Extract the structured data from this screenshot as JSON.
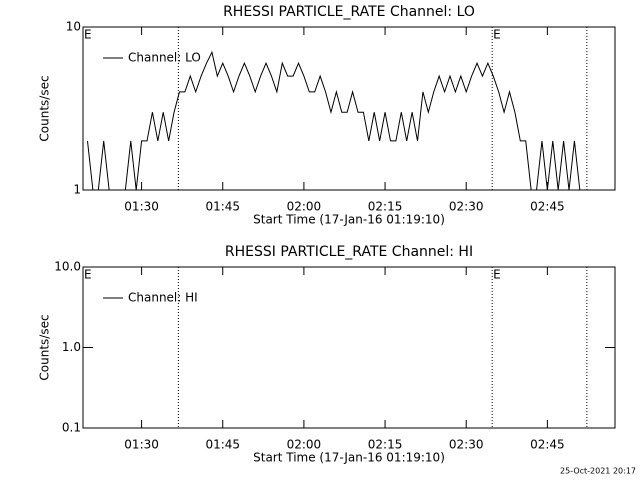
{
  "chart_data": [
    {
      "type": "line",
      "title": "RHESSI PARTICLE_RATE Channel: LO",
      "xlabel": "Start Time (17-Jan-16 01:19:10)",
      "ylabel": "Counts/sec",
      "log_y": true,
      "legend": "upper left",
      "xlim": [
        79.17,
        177.5
      ],
      "xticks": [
        {
          "value": 90,
          "label": "01:30"
        },
        {
          "value": 105,
          "label": "01:45"
        },
        {
          "value": 120,
          "label": "02:00"
        },
        {
          "value": 135,
          "label": "02:15"
        },
        {
          "value": 150,
          "label": "02:30"
        },
        {
          "value": 165,
          "label": "02:45"
        }
      ],
      "ylim": [
        1,
        10
      ],
      "yticks": [
        1,
        10
      ],
      "vlines": [
        96.8,
        154.8,
        172.3
      ],
      "annotations": [
        {
          "text": "E",
          "x": 79.17
        },
        {
          "text": "E",
          "x": 154.8
        }
      ],
      "x": [
        80,
        81,
        82,
        83,
        84,
        85,
        86,
        87,
        88,
        89,
        90,
        91,
        92,
        93,
        94,
        95,
        96,
        97,
        98,
        99,
        100,
        101,
        102,
        103,
        104,
        105,
        106,
        107,
        108,
        109,
        110,
        111,
        112,
        113,
        114,
        115,
        116,
        117,
        118,
        119,
        120,
        121,
        122,
        123,
        124,
        125,
        126,
        127,
        128,
        129,
        130,
        131,
        132,
        133,
        134,
        135,
        136,
        137,
        138,
        139,
        140,
        141,
        142,
        143,
        144,
        145,
        146,
        147,
        148,
        149,
        150,
        151,
        152,
        153,
        154,
        155,
        156,
        157,
        158,
        159,
        160,
        161,
        162,
        163,
        164,
        165,
        166,
        167,
        168,
        169,
        170,
        171
      ],
      "series": [
        {
          "name": "Channel: LO",
          "color": "#000000",
          "values": [
            2,
            1,
            1,
            2,
            1,
            1,
            1,
            1,
            2,
            1,
            2,
            2,
            3,
            2,
            3,
            2,
            3,
            4,
            4,
            5,
            4,
            5,
            6,
            7,
            5,
            6,
            5,
            4,
            5,
            6,
            5,
            4,
            5,
            6,
            5,
            4,
            6,
            5,
            5,
            6,
            5,
            4,
            4,
            5,
            4,
            3,
            4,
            3,
            3,
            4,
            3,
            3,
            2,
            3,
            2,
            3,
            2,
            2,
            3,
            2,
            3,
            2,
            4,
            3,
            4,
            5,
            4,
            5,
            4,
            5,
            4,
            5,
            6,
            5,
            6,
            5,
            4,
            3,
            4,
            3,
            2,
            2,
            1,
            1,
            2,
            1,
            2,
            1,
            2,
            1,
            2,
            1
          ]
        }
      ]
    },
    {
      "type": "line",
      "title": "RHESSI PARTICLE_RATE Channel: HI",
      "xlabel": "Start Time (17-Jan-16 01:19:10)",
      "ylabel": "Counts/sec",
      "log_y": true,
      "legend": "upper left",
      "xlim": [
        79.17,
        177.5
      ],
      "xticks": [
        {
          "value": 90,
          "label": "01:30"
        },
        {
          "value": 105,
          "label": "01:45"
        },
        {
          "value": 120,
          "label": "02:00"
        },
        {
          "value": 135,
          "label": "02:15"
        },
        {
          "value": 150,
          "label": "02:30"
        },
        {
          "value": 165,
          "label": "02:45"
        }
      ],
      "ylim": [
        0.1,
        10
      ],
      "yticks": [
        {
          "value": 0.1,
          "label": "0.1"
        },
        {
          "value": 1,
          "label": "1.0"
        },
        {
          "value": 10,
          "label": "10.0"
        }
      ],
      "vlines": [
        96.8,
        154.8,
        172.3
      ],
      "annotations": [
        {
          "text": "E",
          "x": 79.17
        },
        {
          "text": "E",
          "x": 154.8
        }
      ],
      "x": [],
      "series": [
        {
          "name": "Channel: HI",
          "color": "#000000",
          "values": []
        }
      ]
    }
  ],
  "footer": "25-Oct-2021 20:17"
}
